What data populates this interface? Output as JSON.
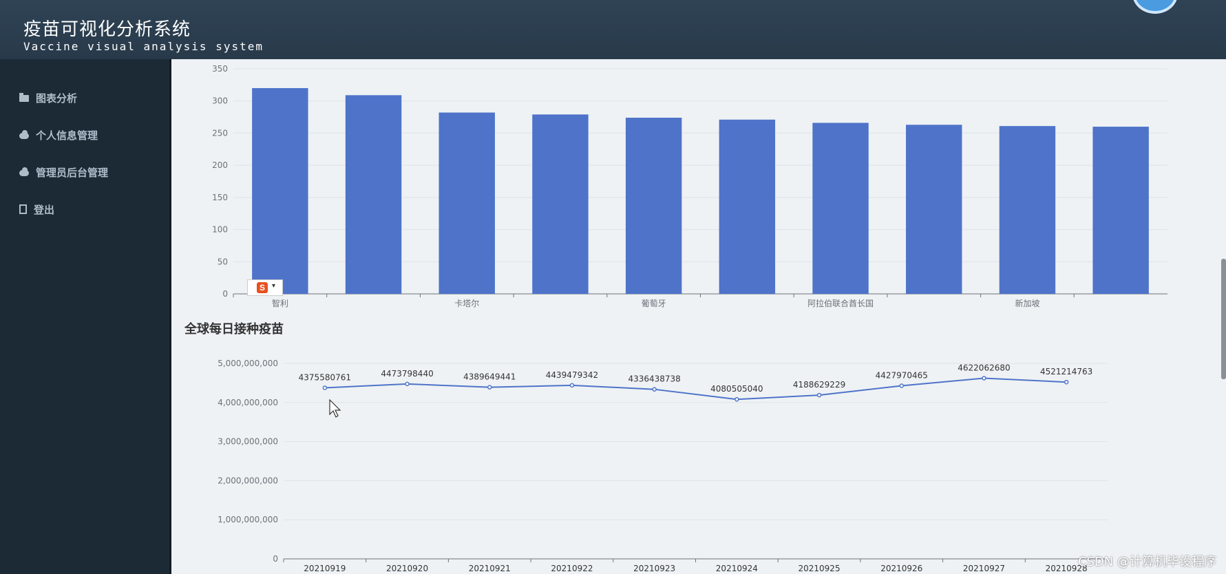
{
  "header": {
    "title_cn": "疫苗可视化分析系统",
    "title_en": "Vaccine visual analysis system"
  },
  "sidebar": {
    "items": [
      {
        "label": "图表分析",
        "icon": "folder-icon"
      },
      {
        "label": "个人信息管理",
        "icon": "cloud-download-icon"
      },
      {
        "label": "管理员后台管理",
        "icon": "cloud-download-icon"
      },
      {
        "label": "登出",
        "icon": "document-icon"
      }
    ]
  },
  "ime_badge": "S",
  "watermark": "CSDN @计算机毕设程序",
  "colors": {
    "series": "#4e73c9",
    "header": "#2f4355",
    "sidebar": "#1c2a36"
  },
  "chart_data": [
    {
      "type": "bar",
      "categories": [
        "智利",
        "",
        "卡塔尔",
        "",
        "葡萄牙",
        "",
        "阿拉伯联合酋长国",
        "",
        "新加坡",
        ""
      ],
      "values": [
        320,
        309,
        282,
        279,
        274,
        271,
        266,
        263,
        261,
        260
      ],
      "ylim": [
        0,
        350
      ],
      "yticks": [
        "0",
        "50",
        "100",
        "150",
        "200",
        "250",
        "300",
        "350"
      ],
      "grid": true
    },
    {
      "type": "line",
      "title": "全球每日接种疫苗",
      "categories": [
        "20210919",
        "20210920",
        "20210921",
        "20210922",
        "20210923",
        "20210924",
        "20210925",
        "20210926",
        "20210927",
        "20210928"
      ],
      "values": [
        4375580761,
        4473798440,
        4389649441,
        4439479342,
        4336438738,
        4080505040,
        4188629229,
        4427970465,
        4622062680,
        4521214763
      ],
      "labels": [
        "4375580761",
        "4473798440",
        "4389649441",
        "4439479342",
        "4336438738",
        "4080505040",
        "4188629229",
        "4427970465",
        "4622062680",
        "4521214763"
      ],
      "ylim": [
        0,
        5000000000
      ],
      "yticks": [
        "0",
        "1,000,000,000",
        "2,000,000,000",
        "3,000,000,000",
        "4,000,000,000",
        "5,000,000,000"
      ],
      "grid": true
    }
  ]
}
